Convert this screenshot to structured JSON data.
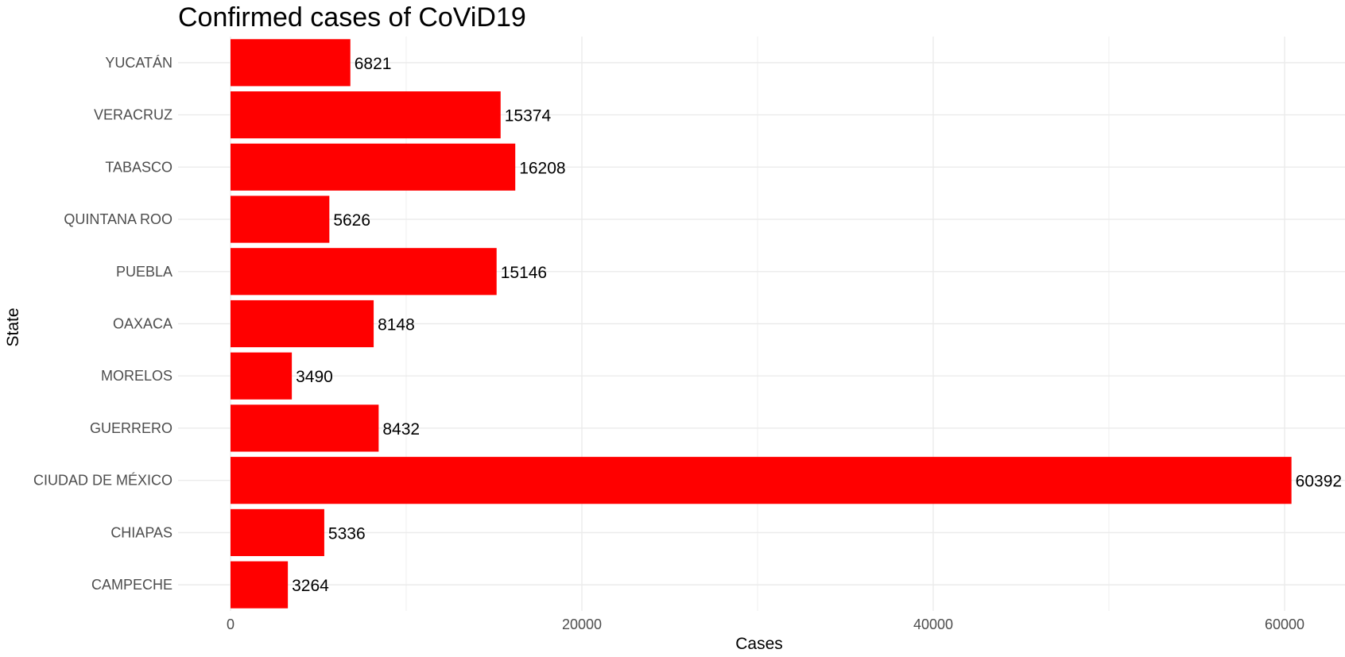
{
  "chart_data": {
    "type": "bar",
    "orientation": "horizontal",
    "title": "Confirmed cases of CoViD19",
    "xlabel": "Cases",
    "ylabel": "State",
    "categories": [
      "CAMPECHE",
      "CHIAPAS",
      "CIUDAD DE MÉXICO",
      "GUERRERO",
      "MORELOS",
      "OAXACA",
      "PUEBLA",
      "QUINTANA ROO",
      "TABASCO",
      "VERACRUZ",
      "YUCATÁN"
    ],
    "values": [
      3264,
      5336,
      60392,
      8432,
      3490,
      8148,
      15146,
      5626,
      16208,
      15374,
      6821
    ],
    "data_labels": [
      "3264",
      "5336",
      "60392",
      "8432",
      "3490",
      "8148",
      "15146",
      "5626",
      "16208",
      "15374",
      "6821"
    ],
    "xlim": [
      0,
      63000
    ],
    "x_ticks": [
      0,
      20000,
      40000,
      60000
    ],
    "x_tick_labels": [
      "0",
      "20000",
      "40000",
      "60000"
    ],
    "grid": true,
    "legend": "none",
    "bar_color": "#ff0000",
    "grid_color": "#ebebeb"
  }
}
